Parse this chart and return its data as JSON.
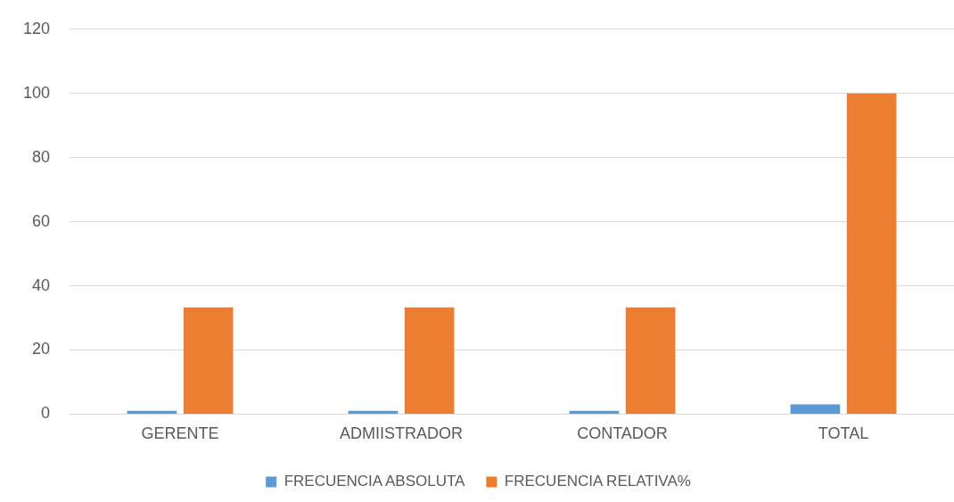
{
  "chart_data": {
    "type": "bar",
    "categories": [
      "GERENTE",
      "ADMIISTRADOR",
      "CONTADOR",
      "TOTAL"
    ],
    "series": [
      {
        "name": "FRECUENCIA ABSOLUTA",
        "color": "#5b9bd5",
        "values": [
          1,
          1,
          1,
          3
        ]
      },
      {
        "name": "FRECUENCIA RELATIVA%",
        "color": "#ed7d31",
        "values": [
          33.3,
          33.3,
          33.3,
          100
        ]
      }
    ],
    "ylim": [
      0,
      120
    ],
    "yticks": [
      0,
      20,
      40,
      60,
      80,
      100,
      120
    ],
    "grid": "y",
    "legend": "bottom"
  }
}
